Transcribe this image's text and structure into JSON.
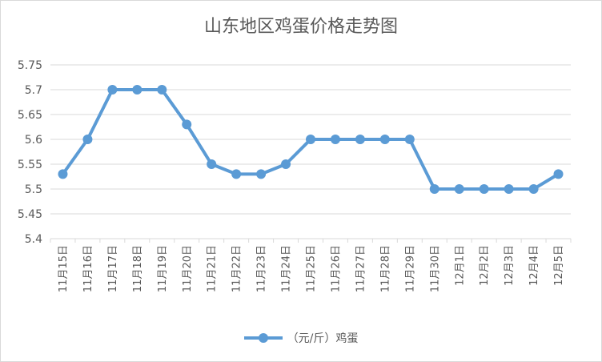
{
  "chart_data": {
    "type": "line",
    "title": "山东地区鸡蛋价格走势图",
    "categories": [
      "11月15日",
      "11月16日",
      "11月17日",
      "11月18日",
      "11月19日",
      "11月20日",
      "11月21日",
      "11月22日",
      "11月23日",
      "11月24日",
      "11月25日",
      "11月26日",
      "11月27日",
      "11月28日",
      "11月29日",
      "11月30日",
      "12月1日",
      "12月2日",
      "12月3日",
      "12月4日",
      "12月5日"
    ],
    "series": [
      {
        "name": "（元/斤）鸡蛋",
        "values": [
          5.53,
          5.6,
          5.7,
          5.7,
          5.7,
          5.63,
          5.55,
          5.53,
          5.53,
          5.55,
          5.6,
          5.6,
          5.6,
          5.6,
          5.6,
          5.5,
          5.5,
          5.5,
          5.5,
          5.5,
          5.53
        ]
      }
    ],
    "ylim": [
      5.4,
      5.75
    ],
    "yticks": [
      "5.4",
      "5.45",
      "5.5",
      "5.55",
      "5.6",
      "5.65",
      "5.7",
      "5.75"
    ],
    "xlabel": "",
    "ylabel": "",
    "grid": true,
    "legend": "bottom",
    "line_color": "#5b9bd5",
    "grid_color": "#d9d9d9",
    "text_color": "#595959"
  }
}
